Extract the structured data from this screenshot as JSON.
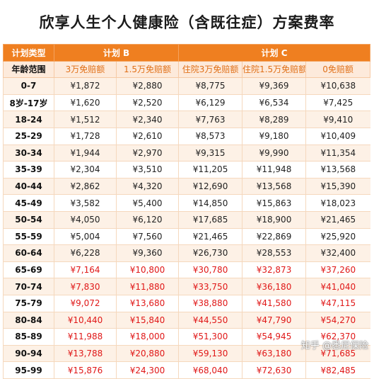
{
  "title": "欣享人生个人健康险（含既往症）方案费率",
  "header": {
    "plan_type": "计划类型",
    "plan_b": "计划 B",
    "plan_c": "计划 C"
  },
  "subheader": {
    "age": "年龄范围",
    "b_deductible_3w": "3万免赔额",
    "b_deductible_15w": "1.5万免赔额",
    "c_hospital_3w": "住院3万免赔额",
    "c_hospital_15w": "住院1.5万免赔额",
    "c_zero": "0免赔额"
  },
  "rows": [
    {
      "age": "0-7",
      "v": [
        "¥1,872",
        "¥2,880",
        "¥8,775",
        "¥9,369",
        "¥10,638"
      ],
      "red": false
    },
    {
      "age": "8岁-17岁",
      "v": [
        "¥1,620",
        "¥2,520",
        "¥6,129",
        "¥6,534",
        "¥7,425"
      ],
      "red": false
    },
    {
      "age": "18-24",
      "v": [
        "¥1,512",
        "¥2,340",
        "¥7,763",
        "¥8,289",
        "¥9,410"
      ],
      "red": false
    },
    {
      "age": "25-29",
      "v": [
        "¥1,728",
        "¥2,610",
        "¥8,573",
        "¥9,180",
        "¥10,409"
      ],
      "red": false
    },
    {
      "age": "30-34",
      "v": [
        "¥1,944",
        "¥2,970",
        "¥9,315",
        "¥9,990",
        "¥11,354"
      ],
      "red": false
    },
    {
      "age": "35-39",
      "v": [
        "¥2,304",
        "¥3,510",
        "¥11,205",
        "¥11,948",
        "¥13,568"
      ],
      "red": false
    },
    {
      "age": "40-44",
      "v": [
        "¥2,862",
        "¥4,320",
        "¥12,690",
        "¥13,568",
        "¥15,390"
      ],
      "red": false
    },
    {
      "age": "45-49",
      "v": [
        "¥3,582",
        "¥5,400",
        "¥14,850",
        "¥15,863",
        "¥18,023"
      ],
      "red": false
    },
    {
      "age": "50-54",
      "v": [
        "¥4,050",
        "¥6,120",
        "¥17,685",
        "¥18,900",
        "¥21,465"
      ],
      "red": false
    },
    {
      "age": "55-59",
      "v": [
        "¥5,004",
        "¥7,560",
        "¥21,465",
        "¥22,869",
        "¥25,920"
      ],
      "red": false
    },
    {
      "age": "60-64",
      "v": [
        "¥6,228",
        "¥9,360",
        "¥26,730",
        "¥28,553",
        "¥32,400"
      ],
      "red": false
    },
    {
      "age": "65-69",
      "v": [
        "¥7,164",
        "¥10,800",
        "¥30,780",
        "¥32,873",
        "¥37,260"
      ],
      "red": true
    },
    {
      "age": "70-74",
      "v": [
        "¥7,830",
        "¥11,880",
        "¥33,750",
        "¥36,180",
        "¥41,040"
      ],
      "red": true
    },
    {
      "age": "75-79",
      "v": [
        "¥9,072",
        "¥13,680",
        "¥38,880",
        "¥41,580",
        "¥47,115"
      ],
      "red": true
    },
    {
      "age": "80-84",
      "v": [
        "¥10,440",
        "¥15,840",
        "¥44,550",
        "¥47,790",
        "¥54,270"
      ],
      "red": true
    },
    {
      "age": "85-89",
      "v": [
        "¥11,988",
        "¥18,000",
        "¥51,300",
        "¥54,945",
        "¥62,370"
      ],
      "red": true
    },
    {
      "age": "90-94",
      "v": [
        "¥13,788",
        "¥20,880",
        "¥59,130",
        "¥63,180",
        "¥71,685"
      ],
      "red": true
    },
    {
      "age": "95-99",
      "v": [
        "¥15,876",
        "¥24,300",
        "¥68,040",
        "¥72,630",
        "¥82,485"
      ],
      "red": true
    }
  ],
  "watermark": "知乎 @悉尼保险"
}
